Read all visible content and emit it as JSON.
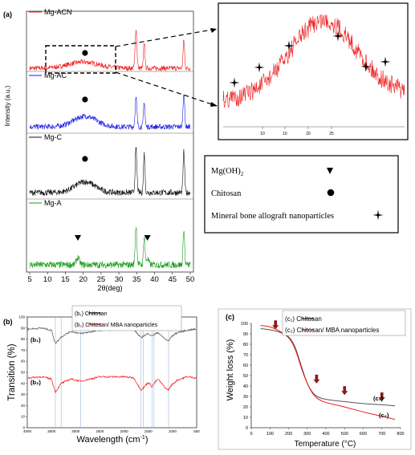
{
  "panel_a": {
    "label": "(a)",
    "ylabel": "Intensity (a.u.)",
    "xlabel": "2θ(deg)",
    "colors": {
      "Mg-ACN": "#ee1c1c",
      "Mg-AC": "#1a1ae6",
      "Mg-C": "#111111",
      "Mg-A": "#1a9a1a"
    },
    "legend_names": [
      "Mg-ACN",
      "Mg-AC",
      "Mg-C",
      "Mg-A"
    ],
    "inset_ticks": [
      "10",
      "15",
      "20",
      "25"
    ],
    "markers_legend": {
      "mgoh2": "Mg(OH)",
      "mgoh2_sub": "2",
      "chitosan": "Chitosan",
      "mba": "Mineral bone allograft nanoparticles"
    }
  },
  "panel_b": {
    "label": "(b)",
    "ylabel": "Transition (%)",
    "xlabel": "Wavelength (cm",
    "xlabel_sup": "-1",
    "xlabel_end": ")",
    "legend": [
      "(b₁)      Chitosan",
      "(b₂)      Chitosan/ MBA nanoparticles"
    ],
    "curve_labels": [
      "(b₁)",
      "(b₂)"
    ]
  },
  "panel_c": {
    "label": "(c)",
    "ylabel": "Weight loss (%)",
    "xlabel": "Temperature (°C)",
    "legend": [
      "(c₁)      Chitosan",
      "(c₂)      Chitosan/ MBA nanoparticles"
    ],
    "curve_labels": [
      "(c₁)",
      "(c₂)"
    ]
  },
  "chart_data": [
    {
      "type": "line",
      "title": "",
      "xlabel": "2θ(deg)",
      "ylabel": "Intensity (a.u.)",
      "xlim": [
        5,
        50
      ],
      "x_ticks": [
        "5",
        "10",
        "15",
        "20",
        "25",
        "30",
        "35",
        "40",
        "45",
        "50"
      ],
      "series": [
        {
          "name": "Mg-ACN",
          "peaks": [
            {
              "x": 20,
              "amp": 0.35,
              "w": 6
            },
            {
              "x": 34.8,
              "amp": 2.2,
              "w": 0.35
            },
            {
              "x": 37.1,
              "amp": 1.4,
              "w": 0.3
            },
            {
              "x": 48.2,
              "amp": 1.6,
              "w": 0.3
            }
          ]
        },
        {
          "name": "Mg-AC",
          "peaks": [
            {
              "x": 20.5,
              "amp": 0.55,
              "w": 4.5
            },
            {
              "x": 34.8,
              "amp": 1.5,
              "w": 0.35
            },
            {
              "x": 37.1,
              "amp": 1.3,
              "w": 0.3
            },
            {
              "x": 48.2,
              "amp": 1.8,
              "w": 0.3
            }
          ]
        },
        {
          "name": "Mg-C",
          "peaks": [
            {
              "x": 20.5,
              "amp": 0.5,
              "w": 4
            },
            {
              "x": 34.8,
              "amp": 2.0,
              "w": 0.35
            },
            {
              "x": 37.1,
              "amp": 1.8,
              "w": 0.3
            },
            {
              "x": 48.2,
              "amp": 1.9,
              "w": 0.3
            }
          ]
        },
        {
          "name": "Mg-A",
          "peaks": [
            {
              "x": 18.5,
              "amp": 0.3,
              "w": 0.6
            },
            {
              "x": 34.8,
              "amp": 1.6,
              "w": 0.35
            },
            {
              "x": 37.1,
              "amp": 1.2,
              "w": 0.3
            },
            {
              "x": 38,
              "amp": 0.25,
              "w": 0.5
            },
            {
              "x": 48.2,
              "amp": 1.5,
              "w": 0.3
            }
          ]
        }
      ],
      "markers": {
        "Mg(OH)2": [
          18.5,
          38
        ],
        "Chitosan": [
          20.5
        ]
      }
    },
    {
      "type": "line",
      "title": "",
      "xlabel": "Wavelength (cm-1)",
      "ylabel": "Transition (%)",
      "xlim": [
        4000,
        500
      ],
      "ylim": [
        0,
        100
      ],
      "x_ticks": [
        "4000",
        "3500",
        "3000",
        "2500",
        "2000",
        "1500",
        "1000",
        "500"
      ],
      "y_ticks": [
        "0",
        "10",
        "20",
        "30",
        "40",
        "50",
        "60",
        "70",
        "80",
        "90",
        "100"
      ],
      "series": [
        {
          "name": "Chitosan",
          "x": [
            4000,
            3700,
            3500,
            3420,
            3300,
            3100,
            2900,
            2500,
            2000,
            1800,
            1650,
            1600,
            1500,
            1420,
            1380,
            1300,
            1150,
            1080,
            1030,
            900,
            700,
            500
          ],
          "y": [
            89,
            90,
            88,
            76,
            82,
            87,
            85,
            88,
            89,
            89,
            81,
            83,
            85,
            83,
            84,
            86,
            80,
            78,
            82,
            86,
            88,
            89
          ]
        },
        {
          "name": "Chitosan/ MBA nanoparticles",
          "x": [
            4000,
            3700,
            3500,
            3420,
            3300,
            3100,
            2900,
            2500,
            2000,
            1800,
            1650,
            1600,
            1500,
            1420,
            1380,
            1300,
            1150,
            1080,
            1030,
            900,
            700,
            500
          ],
          "y": [
            45,
            46,
            44,
            32,
            40,
            44,
            42,
            46,
            46,
            45,
            34,
            36,
            41,
            37,
            40,
            44,
            36,
            34,
            38,
            43,
            46,
            45
          ]
        }
      ],
      "vlines": [
        3420,
        3300,
        2900,
        1650,
        1600,
        1420,
        1380,
        1080
      ]
    },
    {
      "type": "line",
      "title": "",
      "xlabel": "Temperature (°C)",
      "ylabel": "Weight loss (%)",
      "xlim": [
        0,
        800
      ],
      "ylim": [
        0,
        100
      ],
      "x_ticks": [
        "0",
        "100",
        "200",
        "300",
        "400",
        "500",
        "600",
        "700",
        "800"
      ],
      "y_ticks": [
        "0",
        "10",
        "20",
        "30",
        "40",
        "50",
        "60",
        "70",
        "80",
        "90",
        "100"
      ],
      "series": [
        {
          "name": "Chitosan",
          "x": [
            50,
            100,
            150,
            200,
            230,
            250,
            270,
            300,
            330,
            360,
            400,
            500,
            600,
            700,
            770
          ],
          "y": [
            95,
            94,
            92,
            88,
            80,
            70,
            58,
            42,
            33,
            29,
            27,
            25,
            23,
            22,
            21
          ]
        },
        {
          "name": "Chitosan/ MBA nanoparticles",
          "x": [
            50,
            100,
            150,
            200,
            230,
            250,
            270,
            300,
            330,
            360,
            400,
            500,
            600,
            700,
            770
          ],
          "y": [
            98,
            97,
            93,
            87,
            78,
            68,
            56,
            42,
            32,
            27,
            24,
            20,
            15,
            11,
            8
          ]
        }
      ],
      "arrows_x": [
        130,
        350,
        500,
        700
      ]
    }
  ]
}
